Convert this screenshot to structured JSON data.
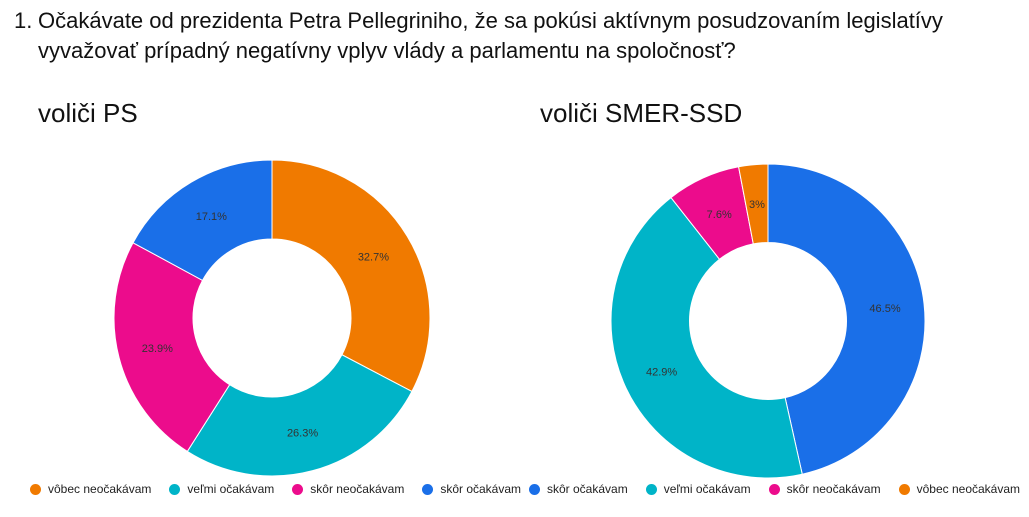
{
  "question": {
    "number": "1.",
    "text": "Očakávate od prezidenta Petra Pellegriniho, že sa pokúsi aktívnym posudzovaním legislatívy vyvažovať prípadný negatívny vplyv vlády a parlamentu na spoločnosť?"
  },
  "chart_data": [
    {
      "type": "pie",
      "title": "voliči PS",
      "legend_position": "bottom",
      "slices": [
        {
          "label": "vôbec neočakávam",
          "value": 32.7,
          "value_label": "32.7%",
          "color": "#f07a00"
        },
        {
          "label": "veľmi očakávam",
          "value": 26.3,
          "value_label": "26.3%",
          "color": "#00b4c8"
        },
        {
          "label": "skôr neočakávam",
          "value": 23.9,
          "value_label": "23.9%",
          "color": "#ec0c8c"
        },
        {
          "label": "skôr očakávam",
          "value": 17.1,
          "value_label": "17.1%",
          "color": "#1a6fe8"
        }
      ]
    },
    {
      "type": "pie",
      "title": "voliči SMER-SSD",
      "legend_position": "bottom",
      "slices": [
        {
          "label": "skôr očakávam",
          "value": 46.5,
          "value_label": "46.5%",
          "color": "#1a6fe8"
        },
        {
          "label": "veľmi očakávam",
          "value": 42.9,
          "value_label": "42.9%",
          "color": "#00b4c8"
        },
        {
          "label": "skôr neočakávam",
          "value": 7.6,
          "value_label": "7.6%",
          "color": "#ec0c8c"
        },
        {
          "label": "vôbec neočakávam",
          "value": 3.0,
          "value_label": "3%",
          "color": "#f07a00"
        }
      ]
    }
  ]
}
